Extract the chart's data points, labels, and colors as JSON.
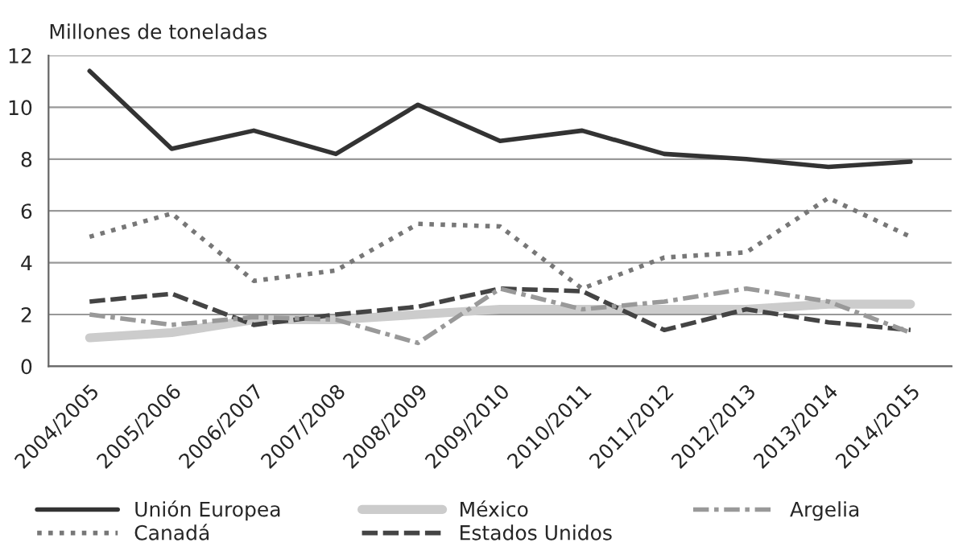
{
  "chart_data": {
    "type": "line",
    "ylabel": "Millones de toneladas",
    "categories": [
      "2004/2005",
      "2005/2006",
      "2006/2007",
      "2007/2008",
      "2008/2009",
      "2009/2010",
      "2010/2011",
      "2011/2012",
      "2012/2013",
      "2013/2014",
      "2014/2015"
    ],
    "series": [
      {
        "name": "Unión Europea",
        "color": "#333333",
        "line_style": "solid",
        "values": [
          11.4,
          8.4,
          9.1,
          8.2,
          10.1,
          8.7,
          9.1,
          8.2,
          8.0,
          7.7,
          7.9
        ]
      },
      {
        "name": "Canadá",
        "color": "#777777",
        "line_style": "dotted",
        "values": [
          5.0,
          5.9,
          3.3,
          3.7,
          5.5,
          5.4,
          3.0,
          4.2,
          4.4,
          6.5,
          5.0
        ]
      },
      {
        "name": "México",
        "color": "#cccccc",
        "line_style": "solid",
        "values": [
          1.1,
          1.3,
          1.8,
          1.8,
          2.0,
          2.2,
          2.2,
          2.2,
          2.2,
          2.4,
          2.4
        ]
      },
      {
        "name": "Estados Unidos",
        "color": "#444444",
        "line_style": "dashed",
        "values": [
          2.5,
          2.8,
          1.6,
          2.0,
          2.3,
          3.0,
          2.9,
          1.4,
          2.2,
          1.7,
          1.4
        ]
      },
      {
        "name": "Argelia",
        "color": "#999999",
        "line_style": "dashdot",
        "values": [
          2.0,
          1.6,
          1.9,
          1.8,
          0.9,
          3.0,
          2.2,
          2.5,
          3.0,
          2.5,
          1.3
        ]
      }
    ],
    "ylim": [
      0,
      12
    ],
    "yticks": [
      0,
      2,
      4,
      6,
      8,
      10,
      12
    ],
    "grid": "y",
    "legend": "bottom",
    "marker": "none"
  }
}
